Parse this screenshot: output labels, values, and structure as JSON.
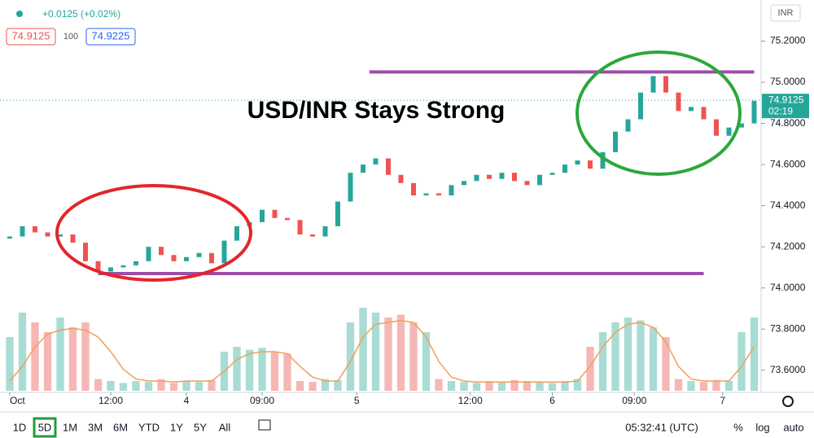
{
  "header": {
    "change": "+0.0125 (+0.02%)",
    "bid": "74.9125",
    "spread": "100",
    "ask": "74.9225",
    "currency": "INR"
  },
  "chart_data": {
    "type": "candlestick",
    "title": "USD/INR Stays Strong",
    "open": [
      74.24,
      74.25,
      74.3,
      74.27,
      74.25,
      74.26,
      74.22,
      74.13,
      74.08,
      74.1,
      74.11,
      74.13,
      74.2,
      74.16,
      74.13,
      74.15,
      74.17,
      74.12,
      74.23,
      74.3,
      74.32,
      74.38,
      74.34,
      74.33,
      74.26,
      74.25,
      74.3,
      74.42,
      74.56,
      74.6,
      74.63,
      74.55,
      74.51,
      74.45,
      74.46,
      74.45,
      74.5,
      74.52,
      74.55,
      74.53,
      74.56,
      74.52,
      74.5,
      74.55,
      74.56,
      74.6,
      74.62,
      74.58,
      74.66,
      74.76,
      74.82,
      74.95,
      75.03,
      74.95,
      74.86,
      74.88,
      74.82,
      74.74,
      74.78,
      74.8
    ],
    "close": [
      74.25,
      74.3,
      74.27,
      74.25,
      74.26,
      74.22,
      74.13,
      74.08,
      74.1,
      74.11,
      74.13,
      74.2,
      74.16,
      74.13,
      74.15,
      74.17,
      74.12,
      74.23,
      74.3,
      74.32,
      74.38,
      74.34,
      74.33,
      74.26,
      74.25,
      74.3,
      74.42,
      74.56,
      74.6,
      74.63,
      74.55,
      74.51,
      74.45,
      74.46,
      74.45,
      74.5,
      74.52,
      74.55,
      74.53,
      74.56,
      74.52,
      74.5,
      74.55,
      74.56,
      74.6,
      74.62,
      74.58,
      74.66,
      74.76,
      74.82,
      74.95,
      75.03,
      74.95,
      74.86,
      74.88,
      74.82,
      74.74,
      74.78,
      74.8,
      74.91
    ],
    "up_color": "#26a69a",
    "down_color": "#ef5350",
    "volume": {
      "values": [
        55,
        80,
        70,
        60,
        75,
        65,
        70,
        12,
        10,
        8,
        10,
        9,
        12,
        8,
        10,
        9,
        11,
        40,
        45,
        42,
        44,
        40,
        38,
        10,
        9,
        12,
        11,
        70,
        85,
        80,
        75,
        78,
        70,
        60,
        12,
        10,
        9,
        8,
        10,
        9,
        11,
        10,
        9,
        8,
        10,
        12,
        45,
        60,
        70,
        75,
        72,
        65,
        55,
        12,
        10,
        9,
        11,
        10,
        60,
        75
      ],
      "ma": [
        10,
        25,
        45,
        58,
        62,
        64,
        62,
        55,
        40,
        22,
        12,
        10,
        10,
        9,
        10,
        10,
        10,
        20,
        32,
        38,
        40,
        40,
        38,
        25,
        14,
        10,
        10,
        30,
        55,
        68,
        70,
        72,
        70,
        55,
        30,
        14,
        10,
        9,
        9,
        9,
        9,
        9,
        9,
        9,
        9,
        10,
        25,
        45,
        60,
        68,
        70,
        65,
        50,
        25,
        12,
        10,
        10,
        10,
        25,
        45
      ],
      "ylim": [
        0,
        100
      ],
      "color_up": "#a8dcd5",
      "color_down": "#f5b7b5",
      "ma_color": "#f0a05a"
    },
    "ylim": [
      73.5,
      75.4
    ],
    "yticks": [
      {
        "value": 73.6,
        "label": "73.6000"
      },
      {
        "value": 73.8,
        "label": "73.8000"
      },
      {
        "value": 74.0,
        "label": "74.0000"
      },
      {
        "value": 74.2,
        "label": "74.2000"
      },
      {
        "value": 74.4,
        "label": "74.4000"
      },
      {
        "value": 74.6,
        "label": "74.6000"
      },
      {
        "value": 74.8,
        "label": "74.8000"
      },
      {
        "value": 75.0,
        "label": "75.0000"
      },
      {
        "value": 75.2,
        "label": "75.2000"
      }
    ],
    "xticks": [
      {
        "value": 0,
        "label": "Oct"
      },
      {
        "value": 8,
        "label": "12:00"
      },
      {
        "value": 14,
        "label": "4"
      },
      {
        "value": 20,
        "label": "09:00"
      },
      {
        "value": 27.5,
        "label": "5"
      },
      {
        "value": 36.5,
        "label": "12:00"
      },
      {
        "value": 43,
        "label": "6"
      },
      {
        "value": 49.5,
        "label": "09:00"
      },
      {
        "value": 56.5,
        "label": "7"
      }
    ],
    "last_price": {
      "value": 74.9125,
      "label": "74.9125"
    },
    "countdown": "02:19",
    "levels": [
      {
        "value": 75.05,
        "from": 28.5,
        "to": 59
      },
      {
        "value": 74.07,
        "from": 7,
        "to": 55
      }
    ],
    "level_color": "#9c4fa8"
  },
  "toolbar": {
    "ranges": [
      "1D",
      "5D",
      "1M",
      "3M",
      "6M",
      "YTD",
      "1Y",
      "5Y",
      "All"
    ],
    "selected": 1,
    "clock": "05:32:41 (UTC)",
    "percent": "%",
    "log": "log",
    "auto": "auto"
  }
}
